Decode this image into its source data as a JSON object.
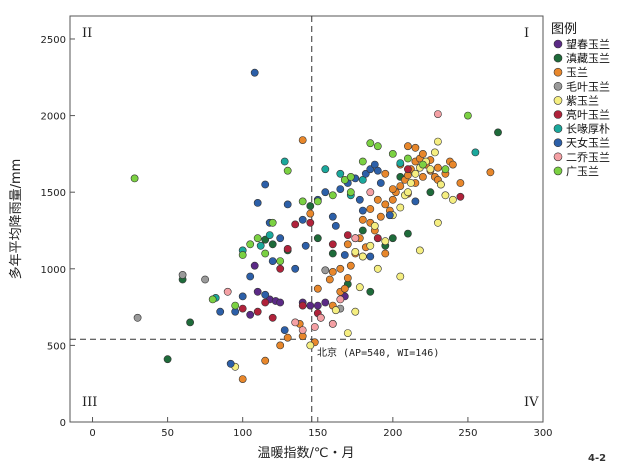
{
  "chart_data": {
    "type": "scatter",
    "xlabel": "温暖指数/℃・月",
    "ylabel": "多年平均降雨量/mm",
    "xlim": [
      -15,
      300
    ],
    "ylim": [
      0,
      2650
    ],
    "x_ticks": [
      0,
      50,
      100,
      150,
      200,
      250,
      300
    ],
    "y_ticks": [
      0,
      500,
      1000,
      1500,
      2000,
      2500
    ],
    "grid": false,
    "legend_position": "right",
    "legend_title": "图例",
    "quadrant_labels": [
      "I",
      "II",
      "III",
      "IV"
    ],
    "reference": {
      "x": 146,
      "y": 540,
      "label": "北京 (AP=540, WI=146)"
    },
    "figure_number": "4-2",
    "series": [
      {
        "name": "望春玉兰",
        "color": "#5b2a86",
        "points": [
          [
            110,
            850
          ],
          [
            118,
            800
          ],
          [
            122,
            790
          ],
          [
            140,
            780
          ],
          [
            145,
            760
          ],
          [
            150,
            760
          ],
          [
            155,
            780
          ],
          [
            168,
            820
          ],
          [
            108,
            1020
          ],
          [
            125,
            780
          ],
          [
            105,
            700
          ]
        ]
      },
      {
        "name": "滇藏玉兰",
        "color": "#1e6b3a",
        "points": [
          [
            50,
            410
          ],
          [
            60,
            930
          ],
          [
            65,
            650
          ],
          [
            270,
            1890
          ],
          [
            115,
            1190
          ],
          [
            120,
            1160
          ],
          [
            130,
            1120
          ],
          [
            145,
            1410
          ],
          [
            180,
            1250
          ],
          [
            195,
            1150
          ],
          [
            200,
            1200
          ],
          [
            210,
            1230
          ],
          [
            150,
            1200
          ],
          [
            160,
            1100
          ],
          [
            170,
            900
          ],
          [
            185,
            850
          ],
          [
            225,
            1500
          ],
          [
            205,
            1600
          ]
        ]
      },
      {
        "name": "玉兰",
        "color": "#e8872b",
        "points": [
          [
            100,
            280
          ],
          [
            115,
            400
          ],
          [
            125,
            500
          ],
          [
            130,
            550
          ],
          [
            138,
            640
          ],
          [
            140,
            560
          ],
          [
            148,
            520
          ],
          [
            152,
            680
          ],
          [
            160,
            760
          ],
          [
            165,
            850
          ],
          [
            168,
            870
          ],
          [
            170,
            940
          ],
          [
            172,
            1020
          ],
          [
            175,
            1100
          ],
          [
            178,
            1200
          ],
          [
            180,
            1080
          ],
          [
            182,
            1140
          ],
          [
            185,
            1300
          ],
          [
            188,
            1250
          ],
          [
            190,
            1200
          ],
          [
            192,
            1340
          ],
          [
            195,
            1420
          ],
          [
            198,
            1380
          ],
          [
            200,
            1450
          ],
          [
            202,
            1500
          ],
          [
            205,
            1540
          ],
          [
            208,
            1580
          ],
          [
            210,
            1610
          ],
          [
            212,
            1650
          ],
          [
            215,
            1700
          ],
          [
            218,
            1720
          ],
          [
            220,
            1750
          ],
          [
            222,
            1680
          ],
          [
            225,
            1640
          ],
          [
            228,
            1600
          ],
          [
            230,
            1580
          ],
          [
            232,
            1550
          ],
          [
            235,
            1620
          ],
          [
            238,
            1700
          ],
          [
            240,
            1680
          ],
          [
            245,
            1560
          ],
          [
            265,
            1630
          ],
          [
            140,
            1840
          ],
          [
            175,
            1200
          ],
          [
            180,
            1320
          ],
          [
            185,
            1390
          ],
          [
            190,
            1450
          ],
          [
            200,
            1520
          ],
          [
            210,
            1490
          ],
          [
            215,
            1560
          ],
          [
            220,
            1600
          ],
          [
            195,
            1100
          ],
          [
            170,
            1160
          ],
          [
            165,
            1000
          ],
          [
            160,
            980
          ],
          [
            158,
            930
          ],
          [
            150,
            870
          ],
          [
            145,
            1360
          ],
          [
            195,
            1620
          ],
          [
            205,
            1680
          ],
          [
            210,
            1800
          ],
          [
            215,
            1790
          ],
          [
            225,
            1710
          ],
          [
            230,
            1660
          ]
        ]
      },
      {
        "name": "毛叶玉兰",
        "color": "#9a9a9a",
        "points": [
          [
            30,
            680
          ],
          [
            60,
            960
          ],
          [
            75,
            930
          ],
          [
            155,
            990
          ],
          [
            165,
            740
          ]
        ]
      },
      {
        "name": "紫玉兰",
        "color": "#f5ee80",
        "points": [
          [
            95,
            360
          ],
          [
            145,
            500
          ],
          [
            160,
            640
          ],
          [
            162,
            730
          ],
          [
            170,
            580
          ],
          [
            175,
            720
          ],
          [
            178,
            880
          ],
          [
            180,
            1080
          ],
          [
            185,
            1150
          ],
          [
            188,
            1280
          ],
          [
            190,
            1000
          ],
          [
            195,
            1180
          ],
          [
            200,
            1350
          ],
          [
            205,
            1400
          ],
          [
            208,
            1480
          ],
          [
            210,
            1500
          ],
          [
            212,
            1560
          ],
          [
            215,
            1620
          ],
          [
            218,
            1660
          ],
          [
            222,
            1700
          ],
          [
            225,
            1650
          ],
          [
            228,
            1760
          ],
          [
            230,
            1830
          ],
          [
            232,
            1550
          ],
          [
            235,
            1480
          ],
          [
            240,
            1450
          ],
          [
            230,
            1300
          ],
          [
            218,
            1120
          ],
          [
            205,
            950
          ],
          [
            175,
            1110
          ]
        ]
      },
      {
        "name": "亮叶玉兰",
        "color": "#b0223a",
        "points": [
          [
            100,
            740
          ],
          [
            110,
            720
          ],
          [
            115,
            780
          ],
          [
            120,
            680
          ],
          [
            125,
            1000
          ],
          [
            130,
            1130
          ],
          [
            135,
            1290
          ],
          [
            145,
            1300
          ],
          [
            160,
            1160
          ],
          [
            170,
            1220
          ],
          [
            190,
            1200
          ],
          [
            210,
            1650
          ],
          [
            245,
            1470
          ],
          [
            140,
            760
          ],
          [
            150,
            710
          ]
        ]
      },
      {
        "name": "长喙厚朴",
        "color": "#1aa89c",
        "points": [
          [
            82,
            810
          ],
          [
            100,
            1120
          ],
          [
            112,
            1150
          ],
          [
            118,
            1220
          ],
          [
            155,
            1650
          ],
          [
            165,
            1620
          ],
          [
            172,
            1480
          ],
          [
            180,
            1580
          ],
          [
            205,
            1690
          ],
          [
            255,
            1760
          ],
          [
            128,
            1700
          ]
        ]
      },
      {
        "name": "天女玉兰",
        "color": "#2c5fa8",
        "points": [
          [
            95,
            720
          ],
          [
            100,
            820
          ],
          [
            108,
            2280
          ],
          [
            110,
            1430
          ],
          [
            115,
            1550
          ],
          [
            118,
            1300
          ],
          [
            120,
            1050
          ],
          [
            125,
            1200
          ],
          [
            128,
            600
          ],
          [
            135,
            1000
          ],
          [
            140,
            1320
          ],
          [
            142,
            1150
          ],
          [
            150,
            1450
          ],
          [
            155,
            1500
          ],
          [
            160,
            1340
          ],
          [
            162,
            1280
          ],
          [
            165,
            1520
          ],
          [
            170,
            1560
          ],
          [
            175,
            1590
          ],
          [
            178,
            1450
          ],
          [
            180,
            1380
          ],
          [
            182,
            1620
          ],
          [
            185,
            1650
          ],
          [
            188,
            1680
          ],
          [
            190,
            1640
          ],
          [
            192,
            1560
          ],
          [
            198,
            1350
          ],
          [
            215,
            1440
          ],
          [
            85,
            720
          ],
          [
            92,
            380
          ],
          [
            130,
            1420
          ],
          [
            105,
            950
          ],
          [
            115,
            830
          ],
          [
            168,
            1090
          ],
          [
            185,
            1080
          ]
        ]
      },
      {
        "name": "二乔玉兰",
        "color": "#f4a0a4",
        "points": [
          [
            135,
            650
          ],
          [
            140,
            600
          ],
          [
            148,
            620
          ],
          [
            152,
            680
          ],
          [
            160,
            640
          ],
          [
            165,
            800
          ],
          [
            230,
            2010
          ],
          [
            175,
            1200
          ],
          [
            185,
            1500
          ],
          [
            90,
            850
          ]
        ]
      },
      {
        "name": "广玉兰",
        "color": "#7bd142",
        "points": [
          [
            28,
            1590
          ],
          [
            80,
            800
          ],
          [
            95,
            760
          ],
          [
            100,
            1090
          ],
          [
            110,
            1200
          ],
          [
            115,
            1100
          ],
          [
            120,
            1300
          ],
          [
            125,
            1050
          ],
          [
            140,
            1440
          ],
          [
            150,
            1440
          ],
          [
            160,
            1480
          ],
          [
            168,
            1580
          ],
          [
            172,
            1600
          ],
          [
            180,
            1700
          ],
          [
            185,
            1820
          ],
          [
            190,
            1800
          ],
          [
            200,
            1750
          ],
          [
            210,
            1720
          ],
          [
            220,
            1680
          ],
          [
            235,
            1650
          ],
          [
            250,
            2000
          ],
          [
            172,
            1500
          ],
          [
            130,
            1640
          ],
          [
            105,
            1160
          ]
        ]
      }
    ]
  }
}
